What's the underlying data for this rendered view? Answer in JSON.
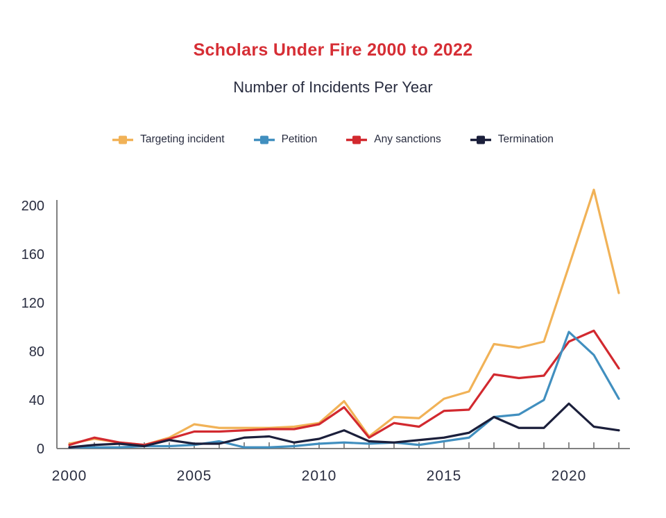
{
  "title": "Scholars Under Fire 2000 to 2022",
  "subtitle": "Number of Incidents Per Year",
  "colors": {
    "title_red": "#D62E35",
    "text_dark": "#292D40",
    "axis_gray": "#808080",
    "targeting": "#F1B257",
    "petition": "#418FBF",
    "sanctions": "#D2292F",
    "termination": "#1B1F3B"
  },
  "legend": [
    {
      "id": "targeting",
      "label": "Targeting incident",
      "color": "#F1B257"
    },
    {
      "id": "petition",
      "label": "Petition",
      "color": "#418FBF"
    },
    {
      "id": "sanctions",
      "label": "Any sanctions",
      "color": "#D2292F"
    },
    {
      "id": "termination",
      "label": "Termination",
      "color": "#1B1F3B"
    }
  ],
  "chart_data": {
    "type": "line",
    "title": "Scholars Under Fire 2000 to 2022",
    "subtitle": "Number of Incidents Per Year",
    "xlabel": "",
    "ylabel": "",
    "x": [
      2000,
      2001,
      2002,
      2003,
      2004,
      2005,
      2006,
      2007,
      2008,
      2009,
      2010,
      2011,
      2012,
      2013,
      2014,
      2015,
      2016,
      2017,
      2018,
      2019,
      2020,
      2021,
      2022
    ],
    "series": [
      {
        "name": "Targeting incident",
        "color": "#F1B257",
        "values": [
          4,
          8,
          5,
          3,
          9,
          20,
          17,
          17,
          17,
          18,
          21,
          39,
          10,
          26,
          25,
          41,
          47,
          86,
          83,
          88,
          150,
          213,
          128
        ]
      },
      {
        "name": "Any sanctions",
        "color": "#D2292F",
        "values": [
          3,
          9,
          5,
          3,
          8,
          14,
          14,
          15,
          16,
          16,
          20,
          34,
          9,
          21,
          18,
          31,
          32,
          61,
          58,
          60,
          88,
          97,
          66
        ]
      },
      {
        "name": "Petition",
        "color": "#418FBF",
        "values": [
          1,
          1,
          1,
          2,
          2,
          3,
          6,
          1,
          1,
          2,
          4,
          5,
          4,
          5,
          3,
          6,
          9,
          26,
          28,
          40,
          96,
          77,
          41
        ]
      },
      {
        "name": "Termination",
        "color": "#1B1F3B",
        "values": [
          1,
          3,
          4,
          2,
          7,
          4,
          4,
          9,
          10,
          5,
          8,
          15,
          6,
          5,
          7,
          9,
          13,
          26,
          17,
          17,
          37,
          18,
          15
        ]
      }
    ],
    "ylim": [
      0,
      200
    ],
    "yticks": [
      0,
      40,
      80,
      120,
      160,
      200
    ],
    "xtick_labels": [
      2000,
      2005,
      2010,
      2015,
      2020
    ],
    "grid": false,
    "legend_position": "top",
    "tick_direction": "in"
  }
}
